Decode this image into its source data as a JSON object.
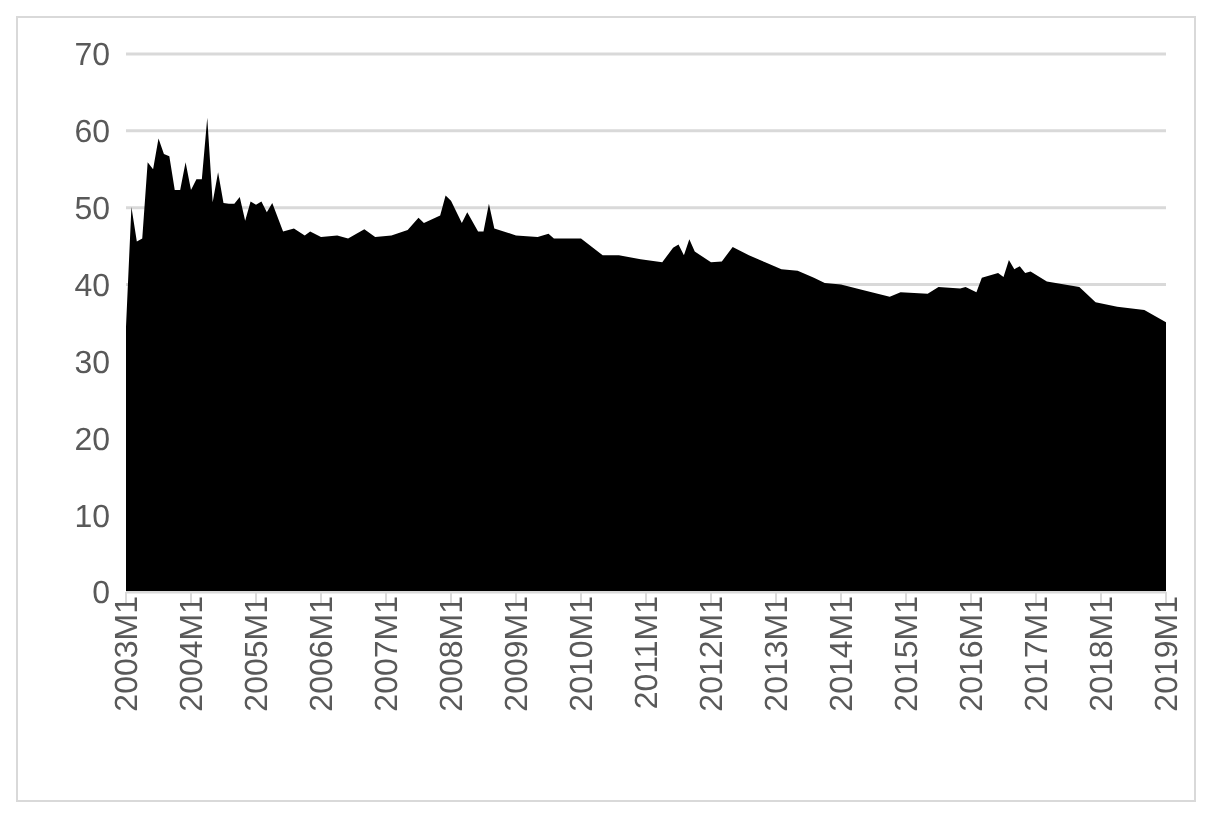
{
  "chart_data": {
    "type": "area",
    "x": [
      "2003-01",
      "2003-02",
      "2003-03",
      "2003-04",
      "2003-05",
      "2003-06",
      "2003-07",
      "2003-08",
      "2003-09",
      "2003-10",
      "2003-11",
      "2003-12",
      "2004-01",
      "2004-02",
      "2004-03",
      "2004-04",
      "2004-05",
      "2004-06",
      "2004-07",
      "2004-08",
      "2004-09",
      "2004-10",
      "2004-11",
      "2004-12",
      "2005-01",
      "2005-02",
      "2005-03",
      "2005-04",
      "2005-06",
      "2005-08",
      "2005-10",
      "2005-11",
      "2006-01",
      "2006-04",
      "2006-06",
      "2006-09",
      "2006-11",
      "2007-02",
      "2007-05",
      "2007-07",
      "2007-08",
      "2007-11",
      "2007-12",
      "2008-01",
      "2008-03",
      "2008-04",
      "2008-06",
      "2008-07",
      "2008-08",
      "2008-09",
      "2009-01",
      "2009-05",
      "2009-07",
      "2009-08",
      "2010-01",
      "2010-05",
      "2010-08",
      "2010-12",
      "2011-04",
      "2011-06",
      "2011-07",
      "2011-08",
      "2011-09",
      "2011-10",
      "2012-01",
      "2012-03",
      "2012-05",
      "2012-08",
      "2012-11",
      "2013-02",
      "2013-05",
      "2013-08",
      "2013-10",
      "2014-01",
      "2014-05",
      "2014-10",
      "2014-12",
      "2015-05",
      "2015-07",
      "2015-11",
      "2015-12",
      "2016-02",
      "2016-03",
      "2016-06",
      "2016-07",
      "2016-08",
      "2016-09",
      "2016-10",
      "2016-11",
      "2016-12",
      "2017-03",
      "2017-09",
      "2017-12",
      "2018-04",
      "2018-09",
      "2019-01"
    ],
    "series": [
      {
        "color": "#000000",
        "values": [
          34.5,
          50.1,
          45.6,
          46,
          55.9,
          55,
          59,
          57,
          56.7,
          52.3,
          52.3,
          55.9,
          52.3,
          53.7,
          53.7,
          61.7,
          50.7,
          54.6,
          50.6,
          50.5,
          50.5,
          51.4,
          48.3,
          50.8,
          50.4,
          50.8,
          49.4,
          50.6,
          46.9,
          47.3,
          46.4,
          46.9,
          46.2,
          46.4,
          46,
          47.2,
          46.2,
          46.4,
          47.1,
          48.7,
          48,
          49,
          51.6,
          50.9,
          48,
          49.4,
          46.9,
          46.9,
          50.5,
          47.3,
          46.4,
          46.2,
          46.6,
          46,
          46,
          43.8,
          43.8,
          43.3,
          42.9,
          44.8,
          45.2,
          43.8,
          45.9,
          44.3,
          42.9,
          43,
          44.9,
          43.8,
          42.9,
          42,
          41.8,
          40.9,
          40.2,
          40,
          39.3,
          38.4,
          39,
          38.8,
          39.7,
          39.5,
          39.7,
          39,
          40.9,
          41.5,
          41,
          43.2,
          42,
          42.4,
          41.5,
          41.7,
          40.4,
          39.7,
          37.7,
          37.1,
          36.7,
          35.1
        ]
      }
    ],
    "xlim": [
      "2003-01",
      "2019-01"
    ],
    "xticks": [
      {
        "value": "2003-01",
        "label": "2003M1"
      },
      {
        "value": "2004-01",
        "label": "2004M1"
      },
      {
        "value": "2005-01",
        "label": "2005M1"
      },
      {
        "value": "2006-01",
        "label": "2006M1"
      },
      {
        "value": "2007-01",
        "label": "2007M1"
      },
      {
        "value": "2008-01",
        "label": "2008M1"
      },
      {
        "value": "2009-01",
        "label": "2009M1"
      },
      {
        "value": "2010-01",
        "label": "2010M1"
      },
      {
        "value": "2011-01",
        "label": "2011M1"
      },
      {
        "value": "2012-01",
        "label": "2012M1"
      },
      {
        "value": "2013-01",
        "label": "2013M1"
      },
      {
        "value": "2014-01",
        "label": "2014M1"
      },
      {
        "value": "2015-01",
        "label": "2015M1"
      },
      {
        "value": "2016-01",
        "label": "2016M1"
      },
      {
        "value": "2017-01",
        "label": "2017M1"
      },
      {
        "value": "2018-01",
        "label": "2018M1"
      },
      {
        "value": "2019-01",
        "label": "2019M1"
      }
    ],
    "ylim": [
      0,
      70
    ],
    "yticks": [
      0,
      10,
      20,
      30,
      40,
      50,
      60,
      70
    ],
    "grid": "y",
    "legend": false
  }
}
